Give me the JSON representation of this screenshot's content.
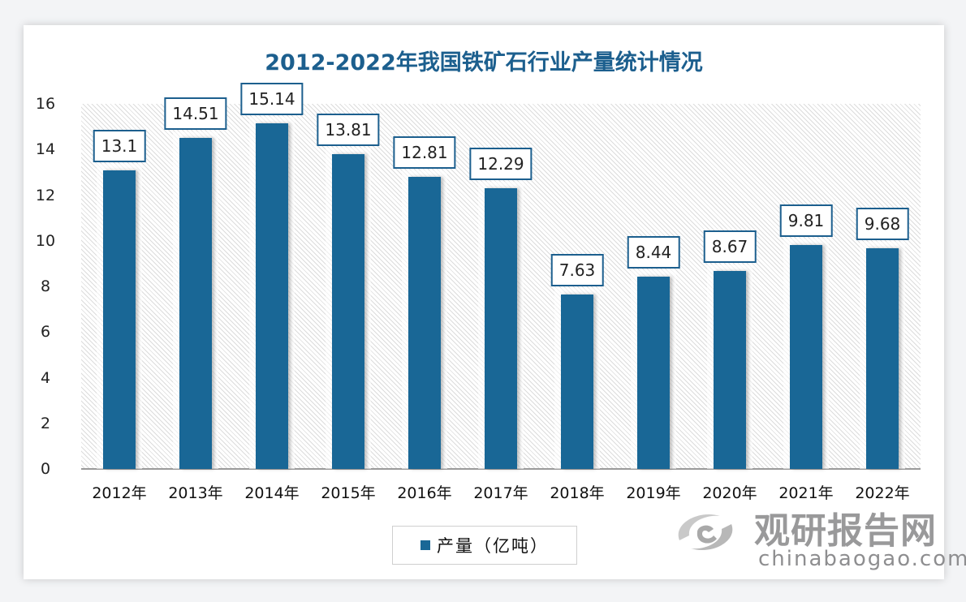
{
  "chart_data": {
    "type": "bar",
    "title": "2012-2022年我国铁矿石行业产量统计情况",
    "categories": [
      "2012年",
      "2013年",
      "2014年",
      "2015年",
      "2016年",
      "2017年",
      "2018年",
      "2019年",
      "2020年",
      "2021年",
      "2022年"
    ],
    "series": [
      {
        "name": "产量（亿吨）",
        "values": [
          13.1,
          14.51,
          15.14,
          13.81,
          12.81,
          12.29,
          7.63,
          8.44,
          8.67,
          9.81,
          9.68
        ],
        "color": "#196796"
      }
    ],
    "value_labels": [
      "13.1",
      "14.51",
      "15.14",
      "13.81",
      "12.81",
      "12.29",
      "7.63",
      "8.44",
      "8.67",
      "9.81",
      "9.68"
    ],
    "xlabel": "",
    "ylabel": "",
    "ylim": [
      0,
      16
    ],
    "yticks": [
      "0",
      "2",
      "4",
      "6",
      "8",
      "10",
      "12",
      "14",
      "16"
    ],
    "grid": false,
    "legend_position": "bottom"
  },
  "legend": {
    "label": "产量（亿吨）"
  },
  "watermark": {
    "cn": "观研报告网",
    "en": "chinabaogao.com"
  }
}
